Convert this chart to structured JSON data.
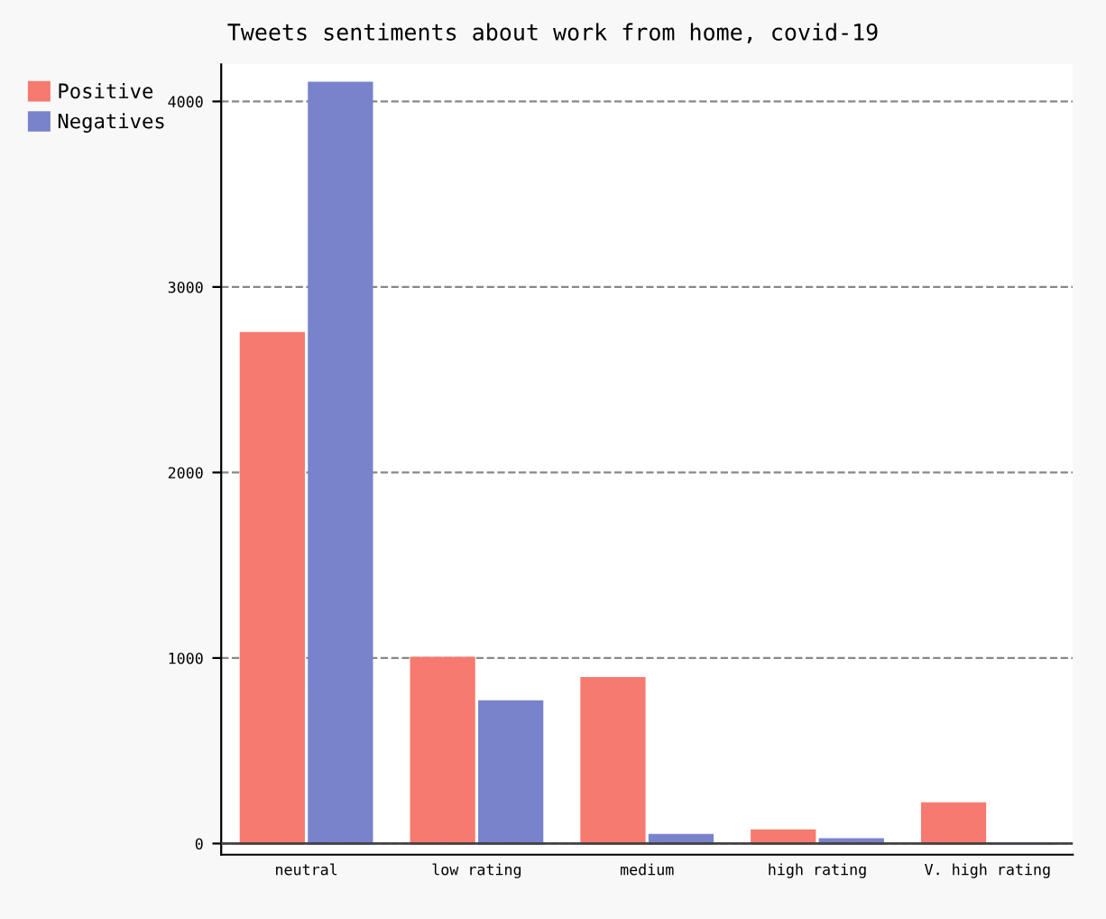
{
  "chart_data": {
    "type": "bar",
    "title": "Tweets sentiments about work from home, covid-19",
    "categories": [
      "neutral",
      "low rating",
      "medium",
      "high rating",
      "V. high rating"
    ],
    "series": [
      {
        "name": "Positive",
        "color": "#f67a70",
        "values": [
          2750,
          1000,
          890,
          70,
          215
        ]
      },
      {
        "name": "Negatives",
        "color": "#7883cb",
        "values": [
          4100,
          765,
          45,
          22,
          0
        ]
      }
    ],
    "ylim": [
      -60,
      4200
    ],
    "yticks": [
      0,
      1000,
      2000,
      3000,
      4000
    ],
    "grid": "y",
    "legend": "top left"
  }
}
